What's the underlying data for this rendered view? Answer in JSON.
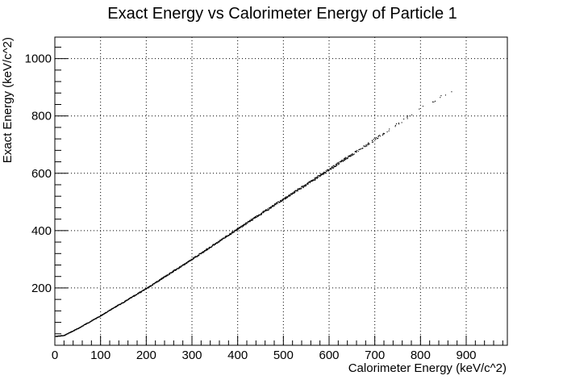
{
  "chart_data": {
    "type": "scatter",
    "title": "Exact Energy vs Calorimeter Energy of Particle 1",
    "xlabel": "Calorimeter Energy (keV/c^2)",
    "ylabel": "Exact Energy (keV/c^2)",
    "xlim": [
      0,
      990
    ],
    "ylim": [
      0,
      1075
    ],
    "grid": true,
    "legend": "none",
    "marker_color": "#000000",
    "x_ticks": [
      0,
      100,
      200,
      300,
      400,
      500,
      600,
      700,
      800,
      900
    ],
    "x_tick_labels": [
      "0",
      "100",
      "200",
      "300",
      "400",
      "500",
      "600",
      "700",
      "800",
      "900"
    ],
    "y_ticks": [
      200,
      400,
      600,
      800,
      1000
    ],
    "y_tick_labels": [
      "200",
      "400",
      "600",
      "800",
      "1000"
    ],
    "trend": [
      {
        "x": 0,
        "y": 32
      },
      {
        "x": 20,
        "y": 36
      },
      {
        "x": 50,
        "y": 60
      },
      {
        "x": 100,
        "y": 105
      },
      {
        "x": 200,
        "y": 200
      },
      {
        "x": 300,
        "y": 302
      },
      {
        "x": 400,
        "y": 408
      },
      {
        "x": 500,
        "y": 512
      },
      {
        "x": 600,
        "y": 615
      },
      {
        "x": 700,
        "y": 720
      },
      {
        "x": 800,
        "y": 828
      },
      {
        "x": 880,
        "y": 900
      }
    ]
  }
}
